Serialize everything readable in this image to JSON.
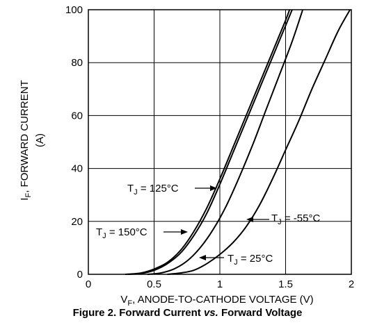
{
  "chart_data": {
    "type": "line",
    "caption": {
      "prefix": "Figure 2. Forward Current ",
      "vs": "vs.",
      "suffix": " Forward Voltage"
    },
    "xlabel": {
      "main": "V",
      "sub": "F",
      "rest": ", ANODE-TO-CATHODE VOLTAGE (V)"
    },
    "ylabel": {
      "main": "I",
      "sub": "F",
      "rest": ", FORWARD CURRENT",
      "unit": "(A)"
    },
    "xlim": [
      0,
      2
    ],
    "ylim": [
      0,
      100
    ],
    "xticks": [
      0,
      0.5,
      1,
      1.5,
      2
    ],
    "xtick_labels": [
      "0",
      "0.5",
      "1",
      "1.5",
      "2"
    ],
    "yticks": [
      0,
      20,
      40,
      60,
      80,
      100
    ],
    "ytick_labels": [
      "0",
      "20",
      "40",
      "60",
      "80",
      "100"
    ],
    "grid": true,
    "series": [
      {
        "label": {
          "main": "T",
          "sub": "J",
          "rest": " = 125°C"
        },
        "points": [
          [
            0.3,
            0
          ],
          [
            0.4,
            0.3
          ],
          [
            0.5,
            1.5
          ],
          [
            0.6,
            4
          ],
          [
            0.7,
            8
          ],
          [
            0.8,
            14.5
          ],
          [
            0.9,
            23
          ],
          [
            1.0,
            34
          ],
          [
            1.1,
            46
          ],
          [
            1.2,
            58
          ],
          [
            1.3,
            70
          ],
          [
            1.4,
            82
          ],
          [
            1.5,
            94
          ],
          [
            1.55,
            100
          ]
        ]
      },
      {
        "label": {
          "main": "T",
          "sub": "J",
          "rest": " = 150°C"
        },
        "points": [
          [
            0.28,
            0
          ],
          [
            0.4,
            0.5
          ],
          [
            0.5,
            2
          ],
          [
            0.6,
            4.5
          ],
          [
            0.7,
            9
          ],
          [
            0.8,
            16
          ],
          [
            0.9,
            25
          ],
          [
            1.0,
            36
          ],
          [
            1.1,
            48
          ],
          [
            1.2,
            60
          ],
          [
            1.3,
            72
          ],
          [
            1.4,
            84
          ],
          [
            1.5,
            96
          ],
          [
            1.53,
            100
          ]
        ]
      },
      {
        "label": {
          "main": "T",
          "sub": "J",
          "rest": " = 25°C"
        },
        "points": [
          [
            0.45,
            0
          ],
          [
            0.55,
            0.5
          ],
          [
            0.65,
            2
          ],
          [
            0.75,
            5
          ],
          [
            0.85,
            10
          ],
          [
            0.95,
            17
          ],
          [
            1.05,
            26
          ],
          [
            1.15,
            37
          ],
          [
            1.25,
            49
          ],
          [
            1.35,
            62
          ],
          [
            1.45,
            75
          ],
          [
            1.55,
            88
          ],
          [
            1.63,
            100
          ]
        ]
      },
      {
        "label": {
          "main": "T",
          "sub": "J",
          "rest": " = -55°C"
        },
        "points": [
          [
            0.6,
            0
          ],
          [
            0.7,
            0.5
          ],
          [
            0.8,
            1.5
          ],
          [
            0.9,
            4
          ],
          [
            1.0,
            7.5
          ],
          [
            1.1,
            12
          ],
          [
            1.2,
            18
          ],
          [
            1.3,
            26
          ],
          [
            1.4,
            36
          ],
          [
            1.5,
            47
          ],
          [
            1.6,
            58
          ],
          [
            1.7,
            70
          ],
          [
            1.8,
            81
          ],
          [
            1.9,
            92
          ],
          [
            1.99,
            100
          ]
        ]
      }
    ]
  }
}
